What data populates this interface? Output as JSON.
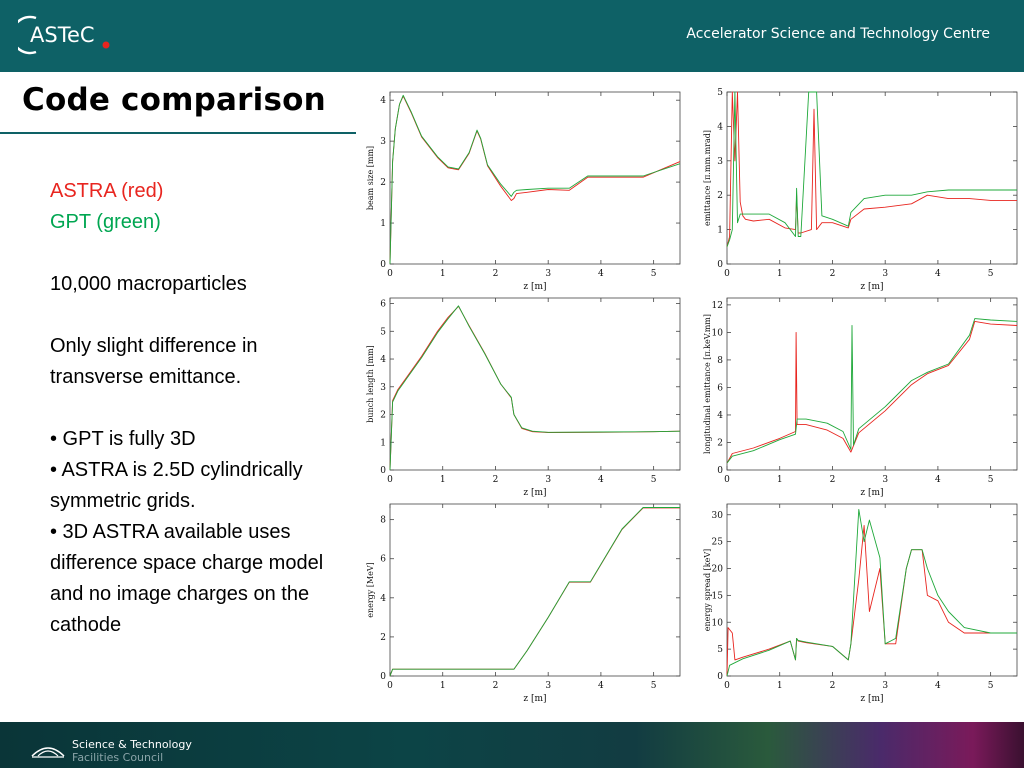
{
  "header": {
    "logo_text": "ASTeC",
    "org": "Accelerator Science and Technology Centre"
  },
  "title": "Code comparison",
  "body": {
    "astra": "ASTRA (red)",
    "gpt": "GPT (green)",
    "particles": "10,000 macroparticles",
    "diff": "Only slight difference in transverse emittance.",
    "bullet1": "•  GPT is fully 3D",
    "bullet2": "•  ASTRA is 2.5D cylindrically symmetric grids.",
    "bullet3": "•  3D ASTRA available uses difference space charge model and no image charges on the cathode"
  },
  "footer": {
    "line1": "Science & Technology",
    "line2": "Facilities Council"
  },
  "colors": {
    "astra": "#e8251f",
    "gpt": "#1fa83a",
    "header": "#0e6166"
  },
  "chart_data": [
    {
      "type": "line",
      "xlabel": "z [m]",
      "ylabel": "beam size [mm]",
      "xticks": [
        "0",
        "1",
        "2",
        "3",
        "4",
        "5"
      ],
      "yticks": [
        "0",
        "1",
        "2",
        "3",
        "4"
      ],
      "xlim": [
        0,
        5.5
      ],
      "ylim": [
        0,
        4.2
      ],
      "series": [
        {
          "name": "ASTRA (red)",
          "x": [
            0,
            0.05,
            0.1,
            0.18,
            0.25,
            0.4,
            0.6,
            0.9,
            1.1,
            1.3,
            1.5,
            1.65,
            1.72,
            1.85,
            2.1,
            2.3,
            2.35,
            2.4,
            2.6,
            3.0,
            3.4,
            3.75,
            4.2,
            4.8,
            5.5
          ],
          "y": [
            0,
            2.5,
            3.3,
            3.9,
            4.1,
            3.7,
            3.1,
            2.6,
            2.35,
            2.3,
            2.7,
            3.25,
            3.05,
            2.4,
            1.9,
            1.55,
            1.6,
            1.72,
            1.75,
            1.82,
            1.8,
            2.12,
            2.12,
            2.12,
            2.5
          ]
        },
        {
          "name": "GPT (green)",
          "x": [
            0,
            0.05,
            0.1,
            0.18,
            0.25,
            0.4,
            0.6,
            0.9,
            1.1,
            1.3,
            1.5,
            1.65,
            1.72,
            1.85,
            2.1,
            2.3,
            2.35,
            2.4,
            2.6,
            3.0,
            3.4,
            3.75,
            4.2,
            4.8,
            5.5
          ],
          "y": [
            0,
            2.5,
            3.3,
            3.9,
            4.12,
            3.72,
            3.12,
            2.62,
            2.37,
            2.32,
            2.72,
            3.27,
            3.07,
            2.42,
            1.95,
            1.65,
            1.75,
            1.8,
            1.82,
            1.85,
            1.85,
            2.15,
            2.15,
            2.15,
            2.45
          ]
        }
      ]
    },
    {
      "type": "line",
      "xlabel": "z [m]",
      "ylabel": "emittance [π.mm.mrad]",
      "xticks": [
        "0",
        "1",
        "2",
        "3",
        "4",
        "5"
      ],
      "yticks": [
        "0",
        "1",
        "2",
        "3",
        "4",
        "5"
      ],
      "xlim": [
        0,
        5.5
      ],
      "ylim": [
        0,
        5
      ],
      "series": [
        {
          "name": "ASTRA (red)",
          "x": [
            0,
            0.05,
            0.1,
            0.15,
            0.2,
            0.25,
            0.3,
            0.35,
            0.5,
            0.8,
            1.1,
            1.3,
            1.32,
            1.35,
            1.4,
            1.6,
            1.65,
            1.7,
            1.8,
            2.0,
            2.3,
            2.35,
            2.6,
            3.0,
            3.5,
            3.8,
            4.2,
            4.6,
            5.0,
            5.5
          ],
          "y": [
            0.5,
            0.8,
            5,
            3,
            5,
            1.8,
            1.4,
            1.3,
            1.25,
            1.3,
            1.05,
            1.0,
            2.0,
            0.9,
            0.9,
            1.0,
            4.5,
            1.0,
            1.2,
            1.2,
            1.05,
            1.3,
            1.6,
            1.65,
            1.75,
            2.0,
            1.9,
            1.9,
            1.85,
            1.85
          ]
        },
        {
          "name": "GPT (green)",
          "x": [
            0,
            0.05,
            0.1,
            0.15,
            0.2,
            0.25,
            0.3,
            0.35,
            0.5,
            0.8,
            1.1,
            1.3,
            1.32,
            1.35,
            1.4,
            1.55,
            1.6,
            1.7,
            1.8,
            2.0,
            2.3,
            2.35,
            2.6,
            3.0,
            3.5,
            3.8,
            4.2,
            4.6,
            5.0,
            5.5
          ],
          "y": [
            0.5,
            0.7,
            1.0,
            5,
            1.2,
            1.45,
            1.45,
            1.45,
            1.45,
            1.45,
            1.2,
            0.8,
            2.2,
            0.8,
            0.8,
            5,
            5,
            5,
            1.4,
            1.3,
            1.1,
            1.5,
            1.9,
            2.0,
            2.0,
            2.1,
            2.15,
            2.15,
            2.15,
            2.15
          ]
        }
      ]
    },
    {
      "type": "line",
      "xlabel": "z [m]",
      "ylabel": "bunch length [mm]",
      "xticks": [
        "0",
        "1",
        "2",
        "3",
        "4",
        "5"
      ],
      "yticks": [
        "0",
        "1",
        "2",
        "3",
        "4",
        "5",
        "6"
      ],
      "xlim": [
        0,
        5.5
      ],
      "ylim": [
        0,
        6.2
      ],
      "series": [
        {
          "name": "ASTRA (red)",
          "x": [
            0,
            0.05,
            0.15,
            0.3,
            0.6,
            0.9,
            1.1,
            1.3,
            1.5,
            1.8,
            2.1,
            2.3,
            2.35,
            2.5,
            2.7,
            3.0,
            4.0,
            5.0,
            5.5
          ],
          "y": [
            0,
            2.5,
            2.9,
            3.3,
            4.1,
            5.0,
            5.5,
            5.9,
            5.2,
            4.2,
            3.1,
            2.6,
            2.0,
            1.5,
            1.38,
            1.35,
            1.36,
            1.38,
            1.4
          ]
        },
        {
          "name": "GPT (green)",
          "x": [
            0,
            0.05,
            0.15,
            0.3,
            0.6,
            0.9,
            1.1,
            1.3,
            1.5,
            1.8,
            2.1,
            2.3,
            2.35,
            2.5,
            2.7,
            3.0,
            4.0,
            5.0,
            5.5
          ],
          "y": [
            0,
            2.45,
            2.85,
            3.25,
            4.05,
            4.95,
            5.45,
            5.92,
            5.18,
            4.18,
            3.1,
            2.62,
            2.0,
            1.52,
            1.4,
            1.36,
            1.37,
            1.38,
            1.4
          ]
        }
      ]
    },
    {
      "type": "line",
      "xlabel": "z [m]",
      "ylabel": "longitudinal emittance [π.keV.mm]",
      "xticks": [
        "0",
        "1",
        "2",
        "3",
        "4",
        "5"
      ],
      "yticks": [
        "0",
        "2",
        "4",
        "6",
        "8",
        "10",
        "12"
      ],
      "xlim": [
        0,
        5.5
      ],
      "ylim": [
        0,
        12.5
      ],
      "series": [
        {
          "name": "ASTRA (red)",
          "x": [
            0,
            0.1,
            0.5,
            1.0,
            1.3,
            1.31,
            1.33,
            1.35,
            1.5,
            1.9,
            2.2,
            2.35,
            2.5,
            3.0,
            3.5,
            3.8,
            4.2,
            4.6,
            4.7,
            5.0,
            5.5
          ],
          "y": [
            0.5,
            1.2,
            1.6,
            2.3,
            2.8,
            10,
            3.3,
            3.3,
            3.3,
            2.9,
            2.3,
            1.3,
            2.7,
            4.3,
            6.2,
            7.0,
            7.6,
            9.5,
            10.8,
            10.6,
            10.5
          ]
        },
        {
          "name": "GPT (green)",
          "x": [
            0,
            0.1,
            0.5,
            1.0,
            1.3,
            1.33,
            1.35,
            1.5,
            1.9,
            2.2,
            2.35,
            2.37,
            2.4,
            2.5,
            3.0,
            3.5,
            3.8,
            4.2,
            4.6,
            4.7,
            5.0,
            5.5
          ],
          "y": [
            0.5,
            1.0,
            1.4,
            2.2,
            2.6,
            3.7,
            3.7,
            3.7,
            3.4,
            2.8,
            1.5,
            10.5,
            1.8,
            3.0,
            4.6,
            6.5,
            7.1,
            7.7,
            9.8,
            11.0,
            10.9,
            10.8
          ]
        }
      ]
    },
    {
      "type": "line",
      "xlabel": "z [m]",
      "ylabel": "energy [MeV]",
      "xticks": [
        "0",
        "1",
        "2",
        "3",
        "4",
        "5"
      ],
      "yticks": [
        "0",
        "2",
        "4",
        "6",
        "8"
      ],
      "xlim": [
        0,
        5.5
      ],
      "ylim": [
        0,
        8.8
      ],
      "series": [
        {
          "name": "ASTRA (red)",
          "x": [
            0,
            0.05,
            1.0,
            2.0,
            2.35,
            2.6,
            3.0,
            3.4,
            3.8,
            4.4,
            4.8,
            5.5
          ],
          "y": [
            0,
            0.35,
            0.35,
            0.35,
            0.35,
            1.3,
            3.0,
            4.8,
            4.8,
            7.5,
            8.6,
            8.6
          ]
        },
        {
          "name": "GPT (green)",
          "x": [
            0,
            0.05,
            1.0,
            2.0,
            2.35,
            2.6,
            3.0,
            3.4,
            3.8,
            4.4,
            4.8,
            5.5
          ],
          "y": [
            0,
            0.35,
            0.35,
            0.35,
            0.35,
            1.3,
            3.0,
            4.82,
            4.82,
            7.52,
            8.62,
            8.62
          ]
        }
      ]
    },
    {
      "type": "line",
      "xlabel": "z [m]",
      "ylabel": "energy spread [keV]",
      "xticks": [
        "0",
        "1",
        "2",
        "3",
        "4",
        "5"
      ],
      "yticks": [
        "0",
        "5",
        "10",
        "15",
        "20",
        "25",
        "30"
      ],
      "xlim": [
        0,
        5.5
      ],
      "ylim": [
        0,
        32
      ],
      "series": [
        {
          "name": "ASTRA (red)",
          "x": [
            0,
            0.02,
            0.1,
            0.15,
            0.3,
            0.8,
            1.2,
            1.3,
            1.32,
            1.35,
            1.5,
            2.0,
            2.3,
            2.35,
            2.5,
            2.6,
            2.7,
            2.9,
            3.0,
            3.2,
            3.4,
            3.5,
            3.7,
            3.8,
            4.0,
            4.2,
            4.5,
            5.0,
            5.5
          ],
          "y": [
            0,
            9,
            8,
            3,
            3.5,
            5,
            6.5,
            3,
            7,
            6.5,
            6.2,
            5.5,
            3,
            6,
            18,
            28,
            12,
            20,
            6,
            6,
            20,
            23.5,
            23.5,
            15,
            14,
            10,
            8,
            8,
            8
          ]
        },
        {
          "name": "GPT (green)",
          "x": [
            0,
            0.05,
            0.3,
            0.8,
            1.2,
            1.3,
            1.32,
            1.35,
            1.5,
            2.0,
            2.3,
            2.35,
            2.5,
            2.6,
            2.7,
            2.9,
            3.0,
            3.2,
            3.4,
            3.5,
            3.7,
            3.8,
            4.0,
            4.2,
            4.5,
            5.0,
            5.5
          ],
          "y": [
            0,
            2,
            3.2,
            4.8,
            6.5,
            3,
            7,
            6.6,
            6.3,
            5.5,
            3,
            6,
            31,
            25,
            29,
            22,
            6,
            7,
            20,
            23.5,
            23.5,
            20,
            15,
            12,
            9,
            8,
            8
          ]
        }
      ]
    }
  ]
}
